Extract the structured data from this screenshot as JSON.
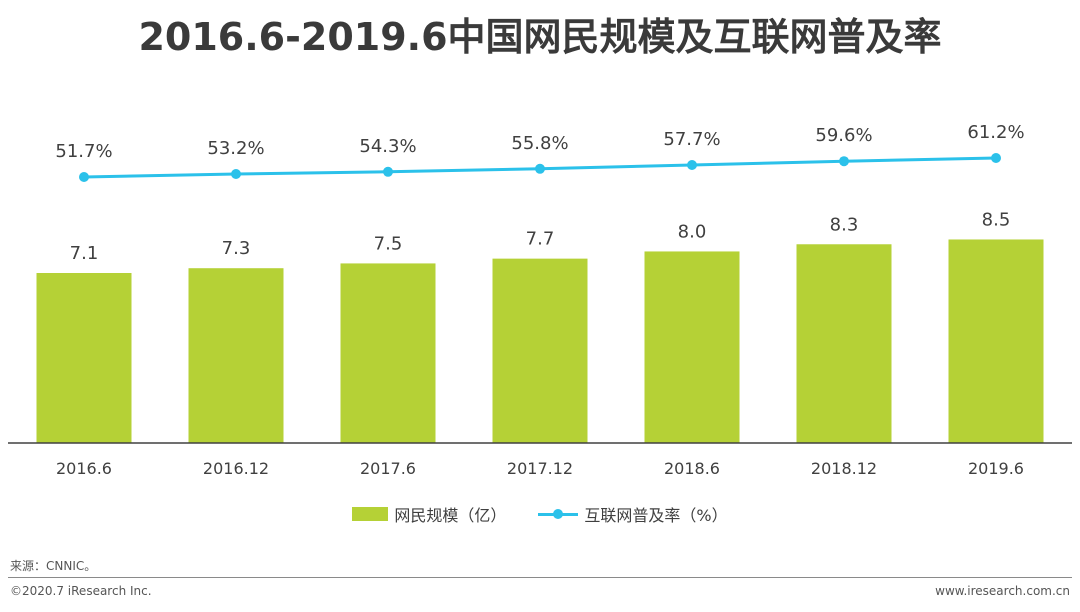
{
  "title": "2016.6-2019.6中国网民规模及互联网普及率",
  "chart_data": {
    "type": "bar+line",
    "categories": [
      "2016.6",
      "2016.12",
      "2017.6",
      "2017.12",
      "2018.6",
      "2018.12",
      "2019.6"
    ],
    "series": [
      {
        "name": "网民规模（亿）",
        "type": "bar",
        "color": "#b5d136",
        "values": [
          7.1,
          7.3,
          7.5,
          7.7,
          8.0,
          8.3,
          8.5
        ],
        "labels": [
          "7.1",
          "7.3",
          "7.5",
          "7.7",
          "8.0",
          "8.3",
          "8.5"
        ]
      },
      {
        "name": "互联网普及率（%）",
        "type": "line",
        "color": "#2bc1ea",
        "values": [
          51.7,
          53.2,
          54.3,
          55.8,
          57.7,
          59.6,
          61.2
        ],
        "labels": [
          "51.7%",
          "53.2%",
          "54.3%",
          "55.8%",
          "57.7%",
          "59.6%",
          "61.2%"
        ]
      }
    ],
    "legend_position": "bottom-center"
  },
  "source": "来源：CNNIC。",
  "footer": {
    "copyright": "©2020.7 iResearch Inc.",
    "website": "www.iresearch.com.cn"
  }
}
